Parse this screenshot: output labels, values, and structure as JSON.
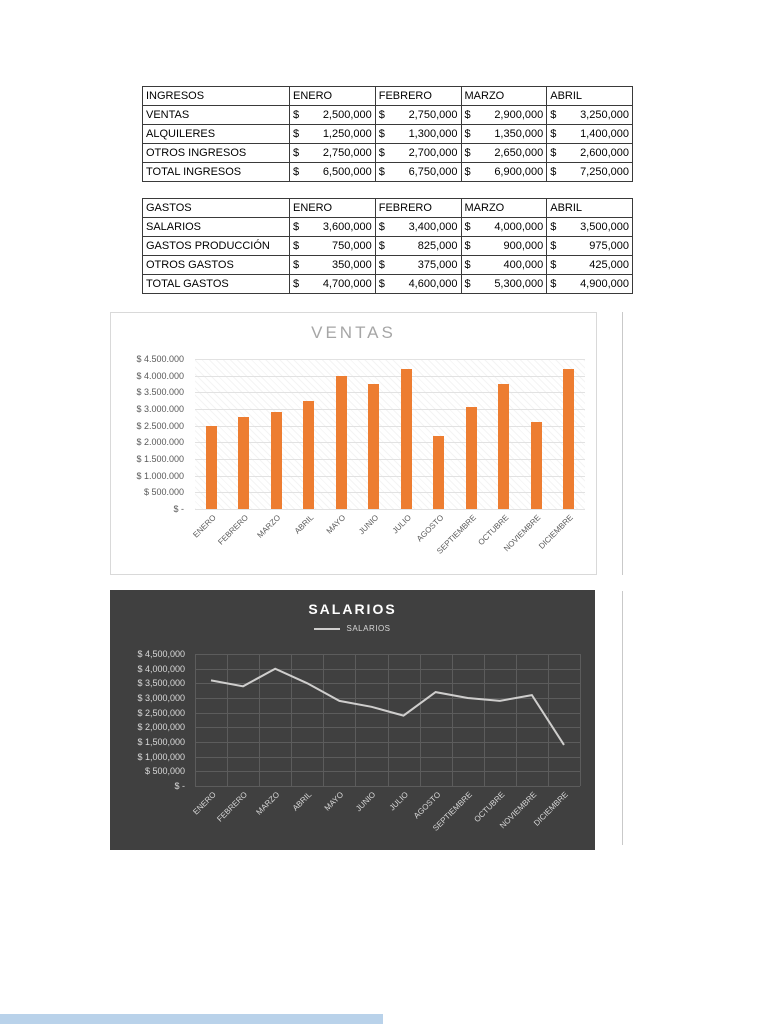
{
  "currency_symbol": "$",
  "page": {
    "background": "#FFFFFF",
    "footer_strip_color": "#B9D2EA"
  },
  "tables": [
    {
      "header": [
        "INGRESOS",
        "ENERO",
        "FEBRERO",
        "MARZO",
        "ABRIL"
      ],
      "rows": [
        [
          "VENTAS",
          "2,500,000",
          "2,750,000",
          "2,900,000",
          "3,250,000"
        ],
        [
          "ALQUILERES",
          "1,250,000",
          "1,300,000",
          "1,350,000",
          "1,400,000"
        ],
        [
          "OTROS INGRESOS",
          "2,750,000",
          "2,700,000",
          "2,650,000",
          "2,600,000"
        ],
        [
          "TOTAL INGRESOS",
          "6,500,000",
          "6,750,000",
          "6,900,000",
          "7,250,000"
        ]
      ]
    },
    {
      "header": [
        "GASTOS",
        "ENERO",
        "FEBRERO",
        "MARZO",
        "ABRIL"
      ],
      "rows": [
        [
          "SALARIOS",
          "3,600,000",
          "3,400,000",
          "4,000,000",
          "3,500,000"
        ],
        [
          "GASTOS PRODUCCIÓN",
          "750,000",
          "825,000",
          "900,000",
          "975,000"
        ],
        [
          "OTROS GASTOS",
          "350,000",
          "375,000",
          "400,000",
          "425,000"
        ],
        [
          "TOTAL GASTOS",
          "4,700,000",
          "4,600,000",
          "5,300,000",
          "4,900,000"
        ]
      ]
    }
  ],
  "chart_data": [
    {
      "type": "bar",
      "title": "VENTAS",
      "categories": [
        "ENERO",
        "FEBRERO",
        "MARZO",
        "ABRIL",
        "MAYO",
        "JUNIO",
        "JULIO",
        "AGOSTO",
        "SEPTIEMBRE",
        "OCTUBRE",
        "NOVIEMBRE",
        "DICIEMBRE"
      ],
      "values": [
        2500000,
        2750000,
        2900000,
        3250000,
        4000000,
        3750000,
        4200000,
        2200000,
        3050000,
        3750000,
        2600000,
        4200000
      ],
      "xlabel": "",
      "ylabel": "",
      "ylim": [
        0,
        4500000
      ],
      "ytick_step": 500000,
      "ytick_labels": [
        "$ 4.500.000",
        "$ 4.000.000",
        "$ 3.500.000",
        "$ 3.000.000",
        "$ 2.500.000",
        "$ 2.000.000",
        "$ 1.500.000",
        "$ 1.000.000",
        "$ 500.000",
        "$ -"
      ],
      "grid": "horizontal",
      "legend": null,
      "bar_color": "#ED7D31",
      "bg": "#FFFFFF"
    },
    {
      "type": "line",
      "title": "SALARIOS",
      "legend": "SALARIOS",
      "legend_position": "top-center",
      "categories": [
        "ENERO",
        "FEBRERO",
        "MARZO",
        "ABRIL",
        "MAYO",
        "JUNIO",
        "JULIO",
        "AGOSTO",
        "SEPTIEMBRE",
        "OCTUBRE",
        "NOVIEMBRE",
        "DICIEMBRE"
      ],
      "values": [
        3600000,
        3400000,
        4000000,
        3500000,
        2900000,
        2700000,
        2400000,
        3200000,
        3000000,
        2900000,
        3100000,
        1400000
      ],
      "xlabel": "",
      "ylabel": "",
      "ylim": [
        0,
        4500000
      ],
      "ytick_step": 500000,
      "ytick_labels": [
        "$ 4,500,000",
        "$ 4,000,000",
        "$ 3,500,000",
        "$ 3,000,000",
        "$ 2,500,000",
        "$ 2,000,000",
        "$ 1,500,000",
        "$ 1,000,000",
        "$ 500,000",
        "$ -"
      ],
      "grid": "both",
      "line_color": "#CFCECD",
      "bg": "#404040"
    }
  ]
}
